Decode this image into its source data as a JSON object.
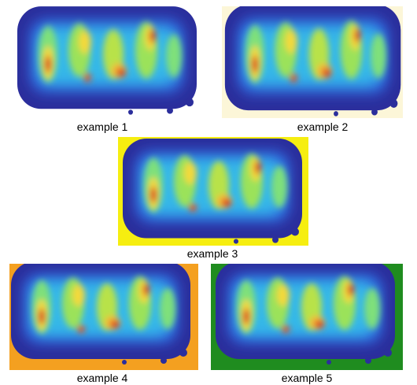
{
  "captions": [
    "example 1",
    "example 2",
    "example 3",
    "example 4",
    "example 5"
  ]
}
